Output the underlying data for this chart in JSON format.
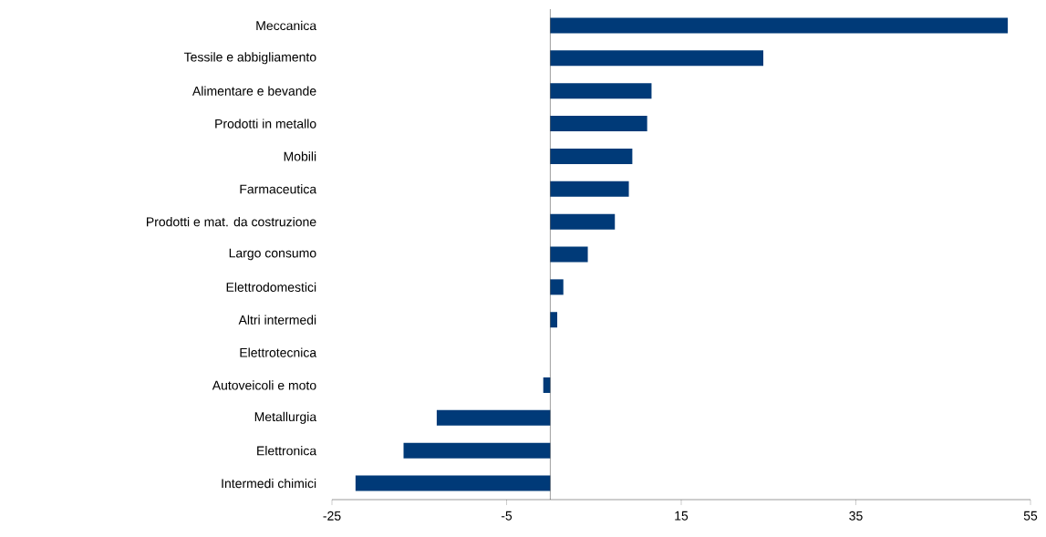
{
  "chart_data": {
    "type": "bar",
    "orientation": "horizontal",
    "categories": [
      "Meccanica",
      "Tessile e abbigliamento",
      "Alimentare e bevande",
      "Prodotti in metallo",
      "Mobili",
      "Farmaceutica",
      "Prodotti e mat. da costruzione",
      "Largo consumo",
      "Elettrodomestici",
      "Altri intermedi",
      "Elettrotecnica",
      "Autoveicoli e moto",
      "Metallurgia",
      "Elettronica",
      "Intermedi chimici"
    ],
    "values": [
      52.4,
      24.4,
      11.6,
      11.1,
      9.4,
      9.0,
      7.4,
      4.3,
      1.5,
      0.8,
      0.0,
      -0.8,
      -13.0,
      -16.8,
      -22.3
    ],
    "color": "#003a78",
    "xlim": [
      -25,
      55
    ],
    "xticks": [
      -25,
      -5,
      15,
      35,
      55
    ],
    "grid": false
  }
}
